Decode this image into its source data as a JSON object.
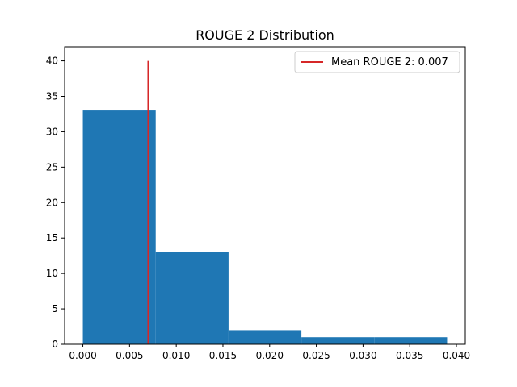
{
  "chart_data": {
    "type": "bar",
    "title": "ROUGE 2 Distribution",
    "xlabel": "",
    "ylabel": "",
    "bins": [
      {
        "start": 0.0,
        "end": 0.0078,
        "count": 33
      },
      {
        "start": 0.0078,
        "end": 0.0156,
        "count": 13
      },
      {
        "start": 0.0156,
        "end": 0.0234,
        "count": 2
      },
      {
        "start": 0.0234,
        "end": 0.0312,
        "count": 1
      },
      {
        "start": 0.0312,
        "end": 0.039,
        "count": 1
      }
    ],
    "mean_line": {
      "x": 0.007,
      "y_range": [
        0,
        40
      ],
      "label": "Mean ROUGE 2: 0.007",
      "color": "#d62728"
    },
    "bar_color": "#1f77b4",
    "xlim": [
      -0.00195,
      0.04095
    ],
    "ylim": [
      0,
      42
    ],
    "xticks": [
      {
        "value": 0.0,
        "label": "0.000"
      },
      {
        "value": 0.005,
        "label": "0.005"
      },
      {
        "value": 0.01,
        "label": "0.010"
      },
      {
        "value": 0.015,
        "label": "0.015"
      },
      {
        "value": 0.02,
        "label": "0.020"
      },
      {
        "value": 0.025,
        "label": "0.025"
      },
      {
        "value": 0.03,
        "label": "0.030"
      },
      {
        "value": 0.035,
        "label": "0.035"
      },
      {
        "value": 0.04,
        "label": "0.040"
      }
    ],
    "yticks": [
      {
        "value": 0,
        "label": "0"
      },
      {
        "value": 5,
        "label": "5"
      },
      {
        "value": 10,
        "label": "10"
      },
      {
        "value": 15,
        "label": "15"
      },
      {
        "value": 20,
        "label": "20"
      },
      {
        "value": 25,
        "label": "25"
      },
      {
        "value": 30,
        "label": "30"
      },
      {
        "value": 35,
        "label": "35"
      },
      {
        "value": 40,
        "label": "40"
      }
    ],
    "legend": {
      "position": "top-right"
    },
    "grid": false
  }
}
